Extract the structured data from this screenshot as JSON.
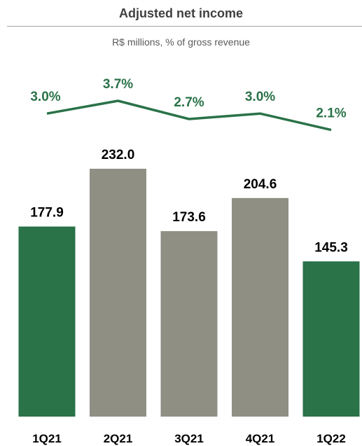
{
  "chart_data": {
    "type": "bar",
    "title": "Adjusted net income",
    "subtitle": "R$ millions, % of gross revenue",
    "categories": [
      "1Q21",
      "2Q21",
      "3Q21",
      "4Q21",
      "1Q22"
    ],
    "series": [
      {
        "type": "bar",
        "values": [
          177.9,
          232.0,
          173.6,
          204.6,
          145.3
        ],
        "labels": [
          "177.9",
          "232.0",
          "173.6",
          "204.6",
          "145.3"
        ],
        "colors": [
          "#2a7248",
          "#8f8f84",
          "#8f8f84",
          "#8f8f84",
          "#2a7248"
        ]
      },
      {
        "type": "line",
        "values": [
          3.0,
          3.7,
          2.7,
          3.0,
          2.1
        ],
        "labels": [
          "3.0%",
          "3.7%",
          "2.7%",
          "3.0%",
          "2.1%"
        ],
        "color": "#2a7248"
      }
    ],
    "xlabel": "",
    "ylabel": "",
    "grid": false,
    "legend": "none",
    "colors": {
      "highlight": "#2a7248",
      "neutral": "#8f8f84",
      "value_label": "#000000",
      "axis": "#595959"
    }
  }
}
